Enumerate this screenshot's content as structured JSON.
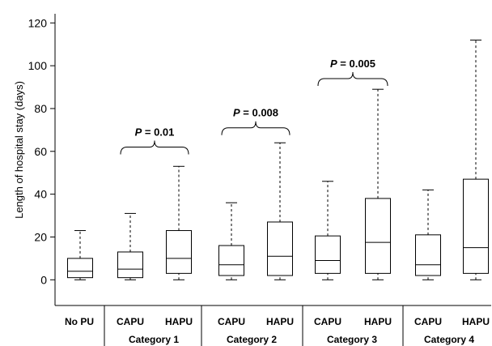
{
  "chart_data": {
    "type": "boxplot",
    "ylabel": "Length of hospital stay (days)",
    "ylim": [
      -12,
      122
    ],
    "yticks": [
      0,
      20,
      40,
      60,
      80,
      100,
      120
    ],
    "boxes": [
      {
        "label": "No PU",
        "category": "",
        "min": 0,
        "q1": 1,
        "median": 4,
        "q3": 10,
        "max": 23
      },
      {
        "label": "CAPU",
        "category": "Category 1",
        "min": 0,
        "q1": 1,
        "median": 5,
        "q3": 13,
        "max": 31
      },
      {
        "label": "HAPU",
        "category": "Category 1",
        "min": 0,
        "q1": 3,
        "median": 10,
        "q3": 23,
        "max": 53
      },
      {
        "label": "CAPU",
        "category": "Category 2",
        "min": 0,
        "q1": 2,
        "median": 7,
        "q3": 16,
        "max": 36
      },
      {
        "label": "HAPU",
        "category": "Category 2",
        "min": 0,
        "q1": 2,
        "median": 11,
        "q3": 27,
        "max": 64
      },
      {
        "label": "CAPU",
        "category": "Category 3",
        "min": 0,
        "q1": 3,
        "median": 9,
        "q3": 20.5,
        "max": 46
      },
      {
        "label": "HAPU",
        "category": "Category 3",
        "min": 0,
        "q1": 3,
        "median": 17.5,
        "q3": 38,
        "max": 89
      },
      {
        "label": "CAPU",
        "category": "Category 4",
        "min": 0,
        "q1": 2,
        "median": 7,
        "q3": 21,
        "max": 42
      },
      {
        "label": "HAPU",
        "category": "Category 4",
        "min": 0,
        "q1": 3,
        "median": 15,
        "q3": 47,
        "max": 112
      }
    ],
    "categories": [
      "No PU",
      "Category 1",
      "Category 2",
      "Category 3",
      "Category 4"
    ],
    "annotations": [
      {
        "prefix": "P",
        "text": " = 0.01",
        "from": 1,
        "to": 2,
        "y": 62
      },
      {
        "prefix": "P",
        "text": " = 0.008",
        "from": 3,
        "to": 4,
        "y": 71
      },
      {
        "prefix": "P",
        "text": " = 0.005",
        "from": 5,
        "to": 6,
        "y": 94
      }
    ]
  }
}
